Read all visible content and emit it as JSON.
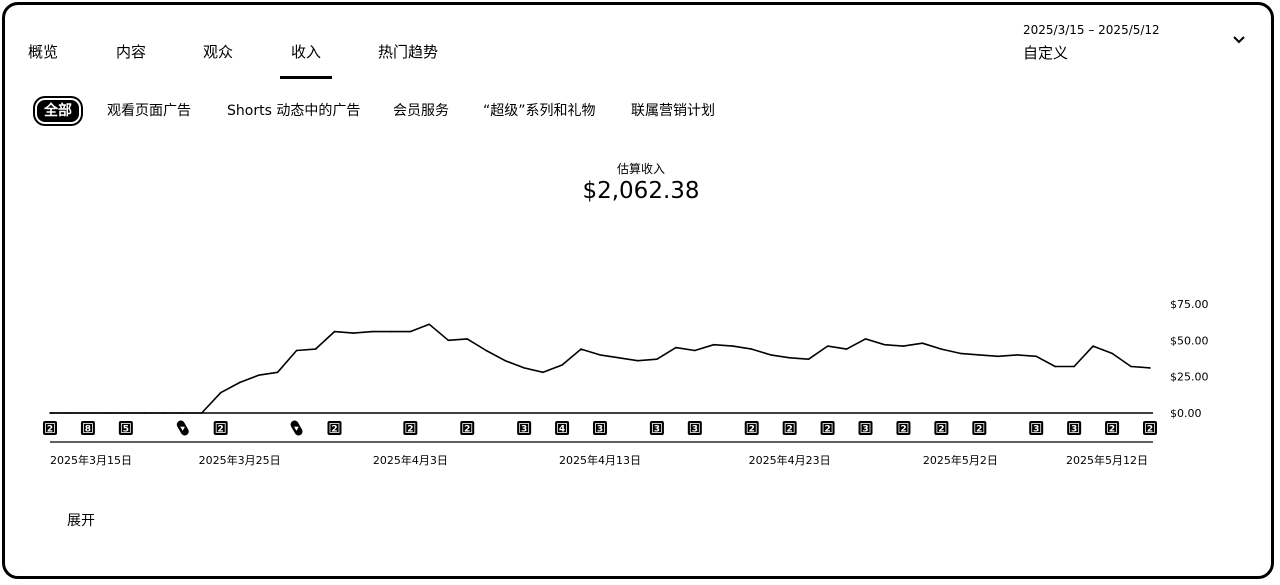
{
  "tabs": [
    {
      "label": "概览"
    },
    {
      "label": "内容"
    },
    {
      "label": "观众"
    },
    {
      "label": "收入",
      "active": true
    },
    {
      "label": "热门趋势"
    }
  ],
  "date_range": {
    "range": "2025/3/15 – 2025/5/12",
    "label": "自定义",
    "chevron_icon": "chevron-down-icon"
  },
  "chips": [
    {
      "label": "全部",
      "active": true
    },
    {
      "label": "观看页面广告"
    },
    {
      "label": "Shorts 动态中的广告"
    },
    {
      "label": "会员服务"
    },
    {
      "label": "“超级”系列和礼物"
    },
    {
      "label": "联属营销计划"
    }
  ],
  "metric": {
    "label": "估算收入",
    "value": "$2,062.38"
  },
  "chart_data": {
    "type": "line",
    "title": "",
    "xlabel": "",
    "ylabel": "",
    "ylim": [
      0,
      75
    ],
    "y_ticks": [
      "$75.00",
      "$50.00",
      "$25.00",
      "$0.00"
    ],
    "y_tick_values": [
      75,
      50,
      25,
      0
    ],
    "x_tick_labels": [
      "2025年3月15日",
      "2025年3月25日",
      "2025年4月3日",
      "2025年4月13日",
      "2025年4月23日",
      "2025年5月2日",
      "2025年5月12日"
    ],
    "x_tick_indices": [
      0,
      10,
      19,
      29,
      39,
      48,
      58
    ],
    "x": [
      "3/15",
      "3/16",
      "3/17",
      "3/18",
      "3/19",
      "3/20",
      "3/21",
      "3/22",
      "3/23",
      "3/24",
      "3/25",
      "3/26",
      "3/27",
      "3/28",
      "3/29",
      "3/30",
      "3/31",
      "4/1",
      "4/2",
      "4/3",
      "4/4",
      "4/5",
      "4/6",
      "4/7",
      "4/8",
      "4/9",
      "4/10",
      "4/11",
      "4/12",
      "4/13",
      "4/14",
      "4/15",
      "4/16",
      "4/17",
      "4/18",
      "4/19",
      "4/20",
      "4/21",
      "4/22",
      "4/23",
      "4/24",
      "4/25",
      "4/26",
      "4/27",
      "4/28",
      "4/29",
      "4/30",
      "5/1",
      "5/2",
      "5/3",
      "5/4",
      "5/5",
      "5/6",
      "5/7",
      "5/8",
      "5/9",
      "5/10",
      "5/11",
      "5/12"
    ],
    "series": [
      {
        "values": [
          0,
          0,
          0,
          0,
          0,
          0,
          0,
          0,
          0,
          14,
          21,
          26,
          28,
          43,
          44,
          56,
          55,
          56,
          56,
          56,
          61,
          50,
          51,
          43,
          36,
          31,
          28,
          33,
          44,
          40,
          38,
          36,
          37,
          45,
          43,
          47,
          46,
          44,
          40,
          38,
          37,
          46,
          44,
          51,
          47,
          46,
          48,
          44,
          41,
          40,
          39,
          40,
          39,
          32,
          32,
          46,
          41,
          32,
          31
        ],
        "color": "#000000"
      }
    ],
    "markers": [
      {
        "index": 0,
        "label": "2"
      },
      {
        "index": 2,
        "label": "8"
      },
      {
        "index": 4,
        "label": "5"
      },
      {
        "index": 7,
        "label": "",
        "type": "shorts"
      },
      {
        "index": 9,
        "label": "2"
      },
      {
        "index": 13,
        "label": "",
        "type": "shorts"
      },
      {
        "index": 15,
        "label": "2"
      },
      {
        "index": 19,
        "label": "2"
      },
      {
        "index": 22,
        "label": "2"
      },
      {
        "index": 25,
        "label": "3"
      },
      {
        "index": 27,
        "label": "4"
      },
      {
        "index": 29,
        "label": "3"
      },
      {
        "index": 32,
        "label": "3"
      },
      {
        "index": 34,
        "label": "3"
      },
      {
        "index": 37,
        "label": "2"
      },
      {
        "index": 39,
        "label": "2"
      },
      {
        "index": 41,
        "label": "2"
      },
      {
        "index": 43,
        "label": "3"
      },
      {
        "index": 45,
        "label": "2"
      },
      {
        "index": 47,
        "label": "2"
      },
      {
        "index": 49,
        "label": "2"
      },
      {
        "index": 52,
        "label": "3"
      },
      {
        "index": 54,
        "label": "3"
      },
      {
        "index": 56,
        "label": "2"
      },
      {
        "index": 58,
        "label": "2"
      }
    ],
    "grid": false,
    "legend": "none"
  },
  "expand_label": "展开"
}
